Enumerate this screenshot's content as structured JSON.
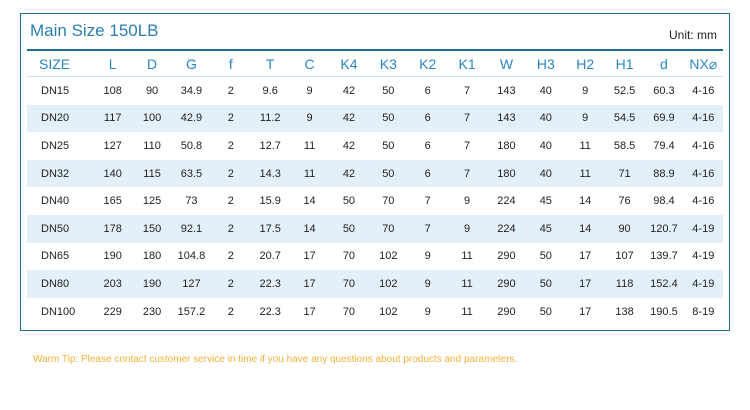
{
  "title": "Main Size 150LB",
  "unit": "Unit: mm",
  "table": {
    "headers": [
      "SIZE",
      "L",
      "D",
      "G",
      "f",
      "T",
      "C",
      "K4",
      "K3",
      "K2",
      "K1",
      "W",
      "H3",
      "H2",
      "H1",
      "d",
      "NX⌀"
    ],
    "rows": [
      [
        "DN15",
        "108",
        "90",
        "34.9",
        "2",
        "9.6",
        "9",
        "42",
        "50",
        "6",
        "7",
        "143",
        "40",
        "9",
        "52.5",
        "60.3",
        "4-16"
      ],
      [
        "DN20",
        "117",
        "100",
        "42.9",
        "2",
        "11.2",
        "9",
        "42",
        "50",
        "6",
        "7",
        "143",
        "40",
        "9",
        "54.5",
        "69.9",
        "4-16"
      ],
      [
        "DN25",
        "127",
        "110",
        "50.8",
        "2",
        "12.7",
        "11",
        "42",
        "50",
        "6",
        "7",
        "180",
        "40",
        "11",
        "58.5",
        "79.4",
        "4-16"
      ],
      [
        "DN32",
        "140",
        "115",
        "63.5",
        "2",
        "14.3",
        "11",
        "42",
        "50",
        "6",
        "7",
        "180",
        "40",
        "11",
        "71",
        "88.9",
        "4-16"
      ],
      [
        "DN40",
        "165",
        "125",
        "73",
        "2",
        "15.9",
        "14",
        "50",
        "70",
        "7",
        "9",
        "224",
        "45",
        "14",
        "76",
        "98.4",
        "4-16"
      ],
      [
        "DN50",
        "178",
        "150",
        "92.1",
        "2",
        "17.5",
        "14",
        "50",
        "70",
        "7",
        "9",
        "224",
        "45",
        "14",
        "90",
        "120.7",
        "4-19"
      ],
      [
        "DN65",
        "190",
        "180",
        "104.8",
        "2",
        "20.7",
        "17",
        "70",
        "102",
        "9",
        "11",
        "290",
        "50",
        "17",
        "107",
        "139.7",
        "4-19"
      ],
      [
        "DN80",
        "203",
        "190",
        "127",
        "2",
        "22.3",
        "17",
        "70",
        "102",
        "9",
        "11",
        "290",
        "50",
        "17",
        "118",
        "152.4",
        "4-19"
      ],
      [
        "DN100",
        "229",
        "230",
        "157.2",
        "2",
        "22.3",
        "17",
        "70",
        "102",
        "9",
        "11",
        "290",
        "50",
        "17",
        "138",
        "190.5",
        "8-19"
      ]
    ]
  },
  "tip": "Warm Tip: Please contact customer service in time if you have any questions about products and parameters."
}
